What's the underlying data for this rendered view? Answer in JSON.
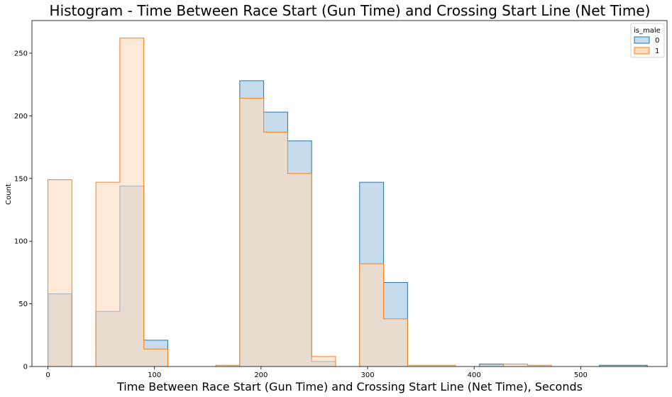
{
  "chart_data": {
    "type": "histogram",
    "title": "Histogram - Time Between Race Start (Gun Time) and Crossing Start Line (Net Time)",
    "xlabel": "Time Between Race Start (Gun Time) and Crossing Start Line (Net Time), Seconds",
    "ylabel": "Count",
    "xlim": [
      -15,
      581
    ],
    "ylim": [
      0,
      276
    ],
    "x_ticks": [
      0,
      100,
      200,
      300,
      400,
      500
    ],
    "y_ticks": [
      0,
      50,
      100,
      150,
      200,
      250
    ],
    "grid": false,
    "bin_edges": [
      0,
      22.5,
      45,
      67.5,
      90,
      112.5,
      135,
      157.5,
      180,
      202.5,
      225,
      247.5,
      270,
      292.5,
      315,
      337.5,
      360,
      382.5,
      405,
      427.5,
      450,
      472.5,
      495,
      517.5,
      540,
      562.5
    ],
    "legend": {
      "title": "is_male",
      "placement": "top-right"
    },
    "series": [
      {
        "name": "0",
        "color": "#1f77b4",
        "fill": "#c6dbeb",
        "values": [
          58,
          0,
          44,
          144,
          21,
          0,
          0,
          0,
          228,
          203,
          180,
          4,
          0,
          147,
          67,
          0,
          0,
          0,
          2,
          0,
          0,
          0,
          0,
          1,
          1
        ]
      },
      {
        "name": "1",
        "color": "#ff7f0e",
        "fill": "#ffdcbf",
        "values": [
          149,
          0,
          147,
          262,
          14,
          0,
          0,
          1,
          214,
          187,
          154,
          8,
          0,
          82,
          38,
          1,
          1,
          0,
          0,
          2,
          1,
          0,
          0,
          0,
          0
        ]
      }
    ]
  }
}
